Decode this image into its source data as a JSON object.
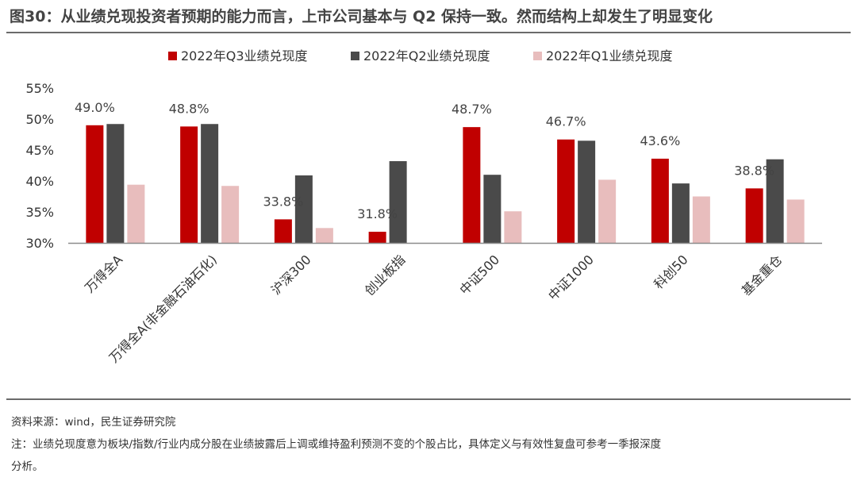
{
  "title": "图30：从业绩兑现投资者预期的能力而言，上市公司基本与 Q2 保持一致。然而结构上却发生了明显变化",
  "chart_data": {
    "type": "bar",
    "categories": [
      "万得全A",
      "万得全A(非金融石油石化)",
      "沪深300",
      "创业板指",
      "中证500",
      "中证1000",
      "科创50",
      "基金重仓"
    ],
    "series": [
      {
        "name": "2022年Q3业绩兑现度",
        "color": "#C00000",
        "values": [
          49.0,
          48.8,
          33.8,
          31.8,
          48.7,
          46.7,
          43.6,
          38.8
        ],
        "labels": [
          "49.0%",
          "48.8%",
          "33.8%",
          "31.8%",
          "48.7%",
          "46.7%",
          "43.6%",
          "38.8%"
        ]
      },
      {
        "name": "2022年Q2业绩兑现度",
        "color": "#4A4A4A",
        "values": [
          49.2,
          49.2,
          40.9,
          43.2,
          41.0,
          46.5,
          39.6,
          43.5
        ]
      },
      {
        "name": "2022年Q1业绩兑现度",
        "color": "#E8BDBD",
        "values": [
          39.4,
          39.2,
          32.4,
          29.5,
          35.1,
          40.2,
          37.5,
          37.0
        ]
      }
    ],
    "yticks": [
      "55%",
      "50%",
      "45%",
      "40%",
      "35%",
      "30%"
    ],
    "ytick_values": [
      55,
      50,
      45,
      40,
      35,
      30
    ],
    "ylim": [
      30,
      55
    ],
    "legend_position": "top-center",
    "grid": false
  },
  "footer": {
    "source": "资料来源：wind，民生证券研究院",
    "note_line1": "注：业绩兑现度意为板块/指数/行业内成分股在业绩披露后上调或维持盈利预测不变的个股占比，具体定义与有效性复盘可参考一季报深度",
    "note_line2": "分析。"
  }
}
